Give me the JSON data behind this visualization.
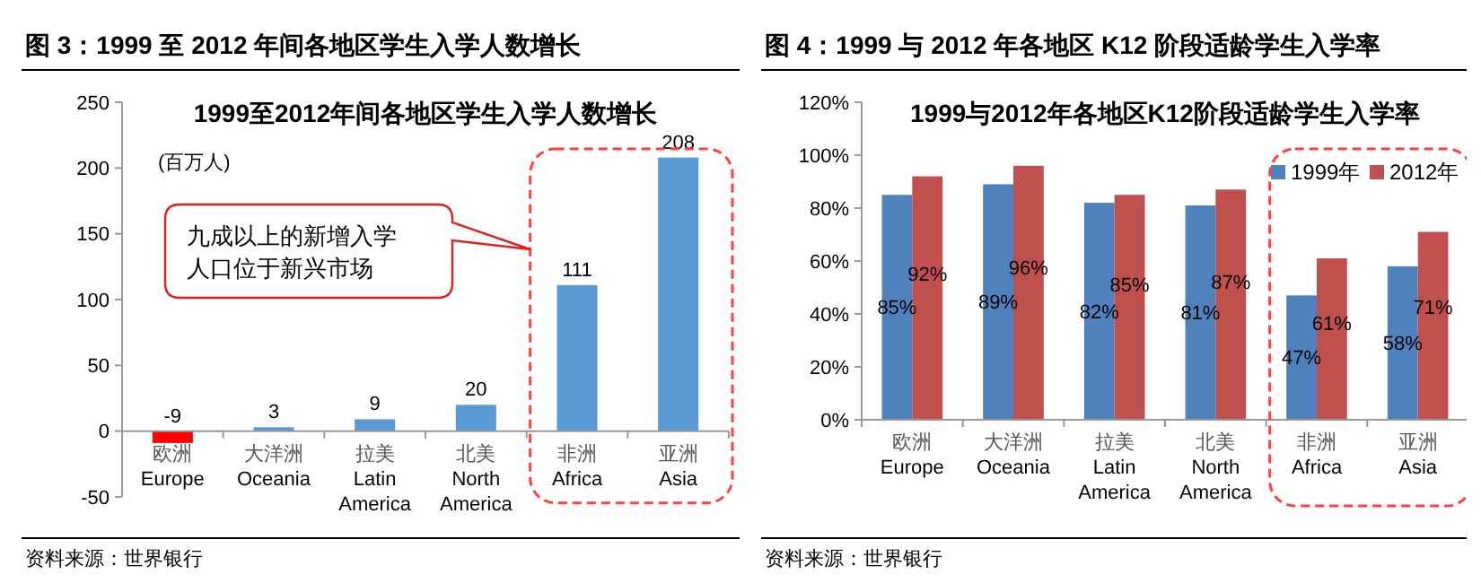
{
  "chart_data": [
    {
      "type": "bar",
      "title": "图 3：1999 至 2012 年间各地区学生入学人数增长",
      "subtitle": "1999至2012年间各地区学生入学人数增长",
      "ylabel": "(百万人)",
      "categories": [
        "欧洲\nEurope",
        "大洋洲\nOceania",
        "拉美\nLatin\nAmerica",
        "北美\nNorth\nAmerica",
        "非洲\nAfrica",
        "亚洲\nAsia"
      ],
      "values": [
        -9,
        3,
        9,
        20,
        111,
        208
      ],
      "colors": [
        "#ff0000",
        "#5b9bd5",
        "#5b9bd5",
        "#5b9bd5",
        "#5b9bd5",
        "#5b9bd5"
      ],
      "ylim": [
        -50,
        250
      ],
      "yticks": [
        -50,
        0,
        50,
        100,
        150,
        200,
        250
      ],
      "grid": false,
      "data_labels": true,
      "annotations": [
        "九成以上的新增入学人口位于新兴市场",
        "资料来源：世界银行"
      ]
    },
    {
      "type": "bar",
      "title": "图 4：1999 与 2012 年各地区 K12 阶段适龄学生入学率",
      "subtitle": "1999与2012年各地区K12阶段适龄学生入学率",
      "categories": [
        "欧洲\nEurope",
        "大洋洲\nOceania",
        "拉美\nLatin\nAmerica",
        "北美\nNorth\nAmerica",
        "非洲\nAfrica",
        "亚洲\nAsia"
      ],
      "series": [
        {
          "name": "1999年",
          "color": "#4f81bd",
          "values": [
            85,
            89,
            82,
            81,
            47,
            58
          ],
          "value_labels": [
            "85%",
            "89%",
            "82%",
            "81%",
            "47%",
            "58%"
          ]
        },
        {
          "name": "2012年",
          "color": "#c0504d",
          "values": [
            92,
            96,
            85,
            87,
            61,
            71
          ],
          "value_labels": [
            "92%",
            "96%",
            "85%",
            "87%",
            "61%",
            "71%"
          ]
        }
      ],
      "ylim": [
        0,
        120
      ],
      "yticks": [
        {
          "value": 0,
          "label": "0%"
        },
        {
          "value": 20,
          "label": "20%"
        },
        {
          "value": 40,
          "label": "40%"
        },
        {
          "value": 60,
          "label": "60%"
        },
        {
          "value": 80,
          "label": "80%"
        },
        {
          "value": 100,
          "label": "100%"
        },
        {
          "value": 120,
          "label": "120%"
        }
      ],
      "grid": false,
      "legend": "top right",
      "annotations": [
        "资料来源：世界银行"
      ]
    }
  ]
}
